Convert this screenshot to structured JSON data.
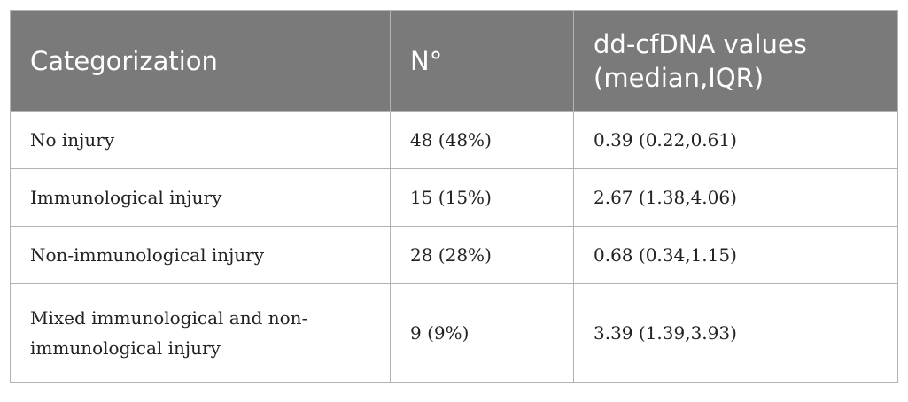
{
  "table": {
    "headers": [
      "Categorization",
      "N°",
      "dd-cfDNA values (median,IQR)"
    ],
    "rows": [
      {
        "category": "No injury",
        "n": "48 (48%)",
        "value": "0.39 (0.22,0.61)"
      },
      {
        "category": "Immunological injury",
        "n": "15 (15%)",
        "value": "2.67 (1.38,4.06)"
      },
      {
        "category": "Non-immunological injury",
        "n": "28 (28%)",
        "value": "0.68 (0.34,1.15)"
      },
      {
        "category": "Mixed immunological and non-immunological injury",
        "n": "9 (9%)",
        "value": "3.39 (1.39,3.93)"
      }
    ]
  }
}
